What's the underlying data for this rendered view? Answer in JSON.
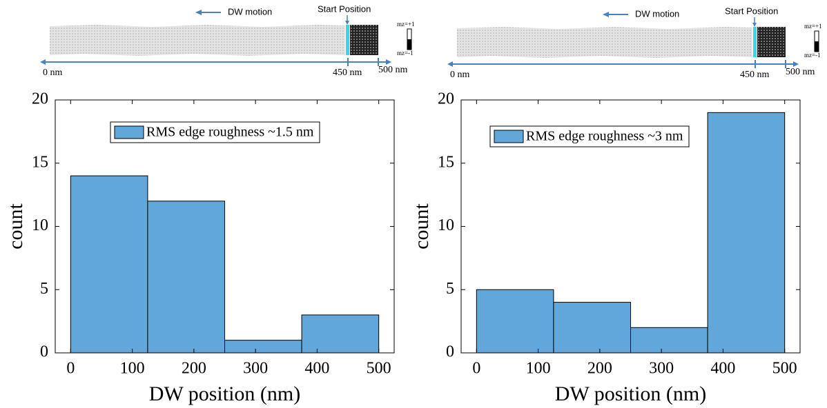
{
  "schematics": [
    {
      "motion": "DW motion",
      "start": "Start Position",
      "mz_up": "mz=+1",
      "mz_down": "mz=-1",
      "left_end": "0 nm",
      "start_mark": "450 nm",
      "right_end": "500 nm"
    },
    {
      "motion": "DW motion",
      "start": "Start Position",
      "mz_up": "mz=+1",
      "mz_down": "mz=-1",
      "left_end": "0 nm",
      "start_mark": "450 nm",
      "right_end": "500 nm"
    }
  ],
  "chart_data": [
    {
      "type": "histogram",
      "xlabel": "DW position (nm)",
      "ylabel": "count",
      "bins": [
        0,
        125,
        250,
        375,
        500
      ],
      "series": [
        {
          "name": "RMS edge roughness ~1.5 nm",
          "color": "#62a7d9",
          "values": [
            14,
            12,
            1,
            3
          ]
        }
      ],
      "xlim": [
        -25,
        525
      ],
      "ylim": [
        0,
        20
      ],
      "xticks": [
        0,
        100,
        200,
        300,
        400,
        500
      ],
      "yticks": [
        0,
        5,
        10,
        15,
        20
      ],
      "legend": "top"
    },
    {
      "type": "histogram",
      "xlabel": "DW position (nm)",
      "ylabel": "count",
      "bins": [
        0,
        125,
        250,
        375,
        500
      ],
      "series": [
        {
          "name": "RMS edge roughness ~3 nm",
          "color": "#62a7d9",
          "values": [
            5,
            4,
            2,
            19
          ]
        }
      ],
      "xlim": [
        -25,
        525
      ],
      "ylim": [
        0,
        20
      ],
      "xticks": [
        0,
        100,
        200,
        300,
        400,
        500
      ],
      "yticks": [
        0,
        5,
        10,
        15,
        20
      ],
      "legend": "top"
    }
  ]
}
